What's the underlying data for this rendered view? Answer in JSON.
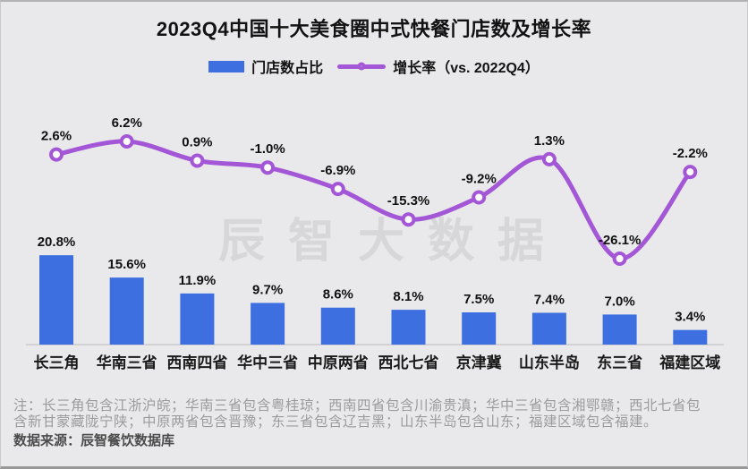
{
  "title": "2023Q4中国十大美食圈中式快餐门店数及增长率",
  "legend": {
    "bar_label": "门店数占比",
    "line_label": "增长率（vs. 2022Q4）"
  },
  "watermark": "辰智大数据",
  "footnote": "注：长三角包含江浙沪皖；华南三省包含粤桂琼；西南四省包含川渝贵滇；华中三省包含湘鄂赣；西北七省包含新甘蒙藏陇宁陕；中原两省包含晋豫；东三省包含辽吉黑；山东半岛包含山东；福建区域包含福建。",
  "source": "数据来源：辰智餐饮数据库",
  "colors": {
    "background": "#e9e9eb",
    "bar": "#3d6fe1",
    "line": "#a356d6",
    "axis": "#d2d2d4",
    "label": "#111111",
    "watermark": "#d7d7d9"
  },
  "chart_data": {
    "type": "combo",
    "title": "2023Q4中国十大美食圈中式快餐门店数及增长率",
    "categories": [
      "长三角",
      "华南三省",
      "西南四省",
      "华中三省",
      "中原两省",
      "西北七省",
      "京津冀",
      "山东半岛",
      "东三省",
      "福建区域"
    ],
    "series": [
      {
        "name": "门店数占比",
        "type": "bar",
        "unit": "%",
        "color": "#3d6fe1",
        "values": [
          20.8,
          15.6,
          11.9,
          9.7,
          8.6,
          8.1,
          7.5,
          7.4,
          7.0,
          3.4
        ]
      },
      {
        "name": "增长率（vs. 2022Q4）",
        "type": "line",
        "unit": "%",
        "color": "#a356d6",
        "values": [
          2.6,
          6.2,
          0.9,
          -1.0,
          -6.9,
          -15.3,
          -9.2,
          1.3,
          -26.1,
          -2.2
        ]
      }
    ],
    "legend_position": "top",
    "grid": false,
    "value_labels": true,
    "xlabel": "",
    "ylabel": ""
  }
}
